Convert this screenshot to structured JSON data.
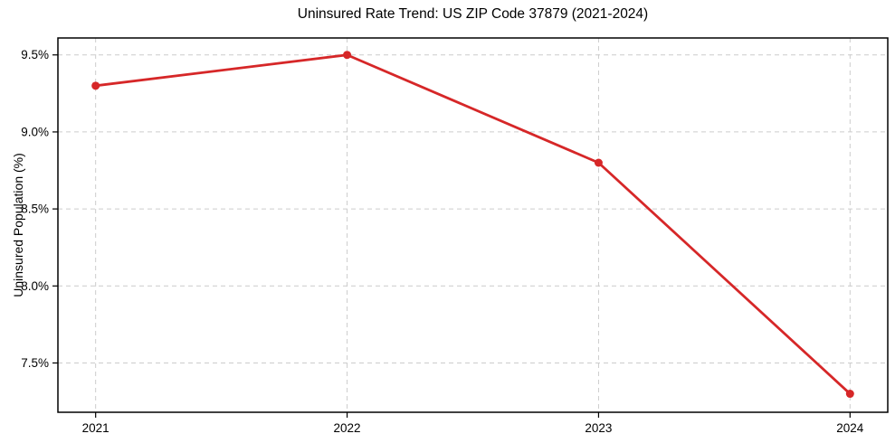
{
  "chart": {
    "background_color": "#ffffff",
    "text_color": "#000000"
  },
  "chart_data": {
    "type": "line",
    "title": "Uninsured Rate Trend: US ZIP Code 37879 (2021-2024)",
    "xlabel": "",
    "ylabel": "Uninsured Population (%)",
    "x": [
      2021,
      2022,
      2023,
      2024
    ],
    "values": [
      9.3,
      9.5,
      8.8,
      7.3
    ],
    "xticks": [
      2021,
      2022,
      2023,
      2024
    ],
    "xtick_labels": [
      "2021",
      "2022",
      "2023",
      "2024"
    ],
    "yticks": [
      7.5,
      8.0,
      8.5,
      9.0,
      9.5
    ],
    "ytick_labels": [
      "7.5%",
      "8.0%",
      "8.5%",
      "9.0%",
      "9.5%"
    ],
    "xlim": [
      2020.85,
      2024.15
    ],
    "ylim": [
      7.18,
      9.61
    ],
    "grid": true,
    "legend": "none",
    "line_color": "#d62728",
    "marker": "circle",
    "grid_color": "#cccccc",
    "axis_color": "#000000"
  }
}
